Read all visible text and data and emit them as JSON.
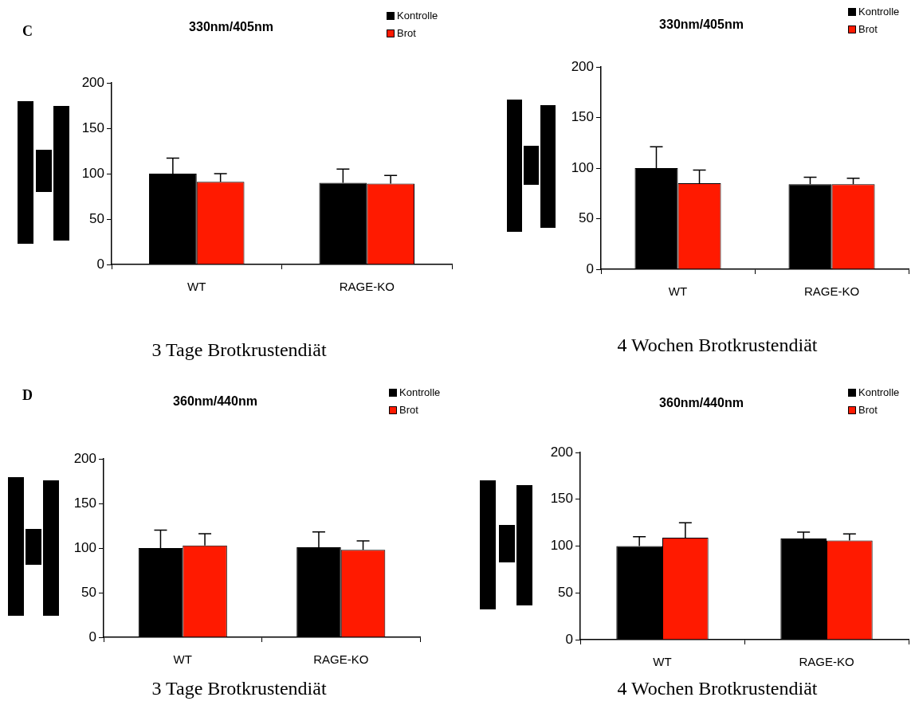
{
  "chart_data": [
    {
      "type": "bar",
      "title": "330nm/405nm",
      "xlabel": "3 Tage Brotkrustendiät",
      "annotations": [
        "C"
      ],
      "categories": [
        "WT",
        "RAGE-KO"
      ],
      "series": [
        {
          "name": "Kontrolle",
          "color": "#000000",
          "values": [
            100,
            90
          ],
          "errors": [
            [
              100,
              117
            ],
            [
              90,
              105
            ]
          ]
        },
        {
          "name": "Brot",
          "color": "#ff1a00",
          "values": [
            91,
            89
          ],
          "errors": [
            [
              91,
              100
            ],
            [
              89,
              98
            ]
          ]
        }
      ],
      "ylim": [
        0,
        200
      ],
      "yticks": [
        0,
        50,
        100,
        150,
        200
      ],
      "grid": false,
      "legend": "top right"
    },
    {
      "type": "bar",
      "title": "330nm/405nm",
      "xlabel": "4 Wochen Brotkrustendiät",
      "categories": [
        "WT",
        "RAGE-KO"
      ],
      "series": [
        {
          "name": "Kontrolle",
          "color": "#000000",
          "values": [
            100,
            84
          ],
          "errors": [
            [
              100,
              121
            ],
            [
              84,
              91
            ]
          ]
        },
        {
          "name": "Brot",
          "color": "#ff1a00",
          "values": [
            85,
            84
          ],
          "errors": [
            [
              85,
              98
            ],
            [
              84,
              90
            ]
          ]
        }
      ],
      "ylim": [
        0,
        200
      ],
      "yticks": [
        0,
        50,
        100,
        150,
        200
      ],
      "grid": false,
      "legend": "top right"
    },
    {
      "type": "bar",
      "title": "360nm/440nm",
      "xlabel": "3 Tage Brotkrustendiät",
      "annotations": [
        "D"
      ],
      "categories": [
        "WT",
        "RAGE-KO"
      ],
      "series": [
        {
          "name": "Kontrolle",
          "color": "#000000",
          "values": [
            100,
            101
          ],
          "errors": [
            [
              100,
              120
            ],
            [
              101,
              118
            ]
          ]
        },
        {
          "name": "Brot",
          "color": "#ff1a00",
          "values": [
            103,
            98
          ],
          "errors": [
            [
              103,
              116
            ],
            [
              98,
              108
            ]
          ]
        }
      ],
      "ylim": [
        0,
        200
      ],
      "yticks": [
        0,
        50,
        100,
        150,
        200
      ],
      "grid": false,
      "legend": "top right"
    },
    {
      "type": "bar",
      "title": "360nm/440nm",
      "xlabel": "4 Wochen Brotkrustendiät",
      "categories": [
        "WT",
        "RAGE-KO"
      ],
      "series": [
        {
          "name": "Kontrolle",
          "color": "#000000",
          "values": [
            100,
            108
          ],
          "errors": [
            [
              100,
              110
            ],
            [
              108,
              115
            ]
          ]
        },
        {
          "name": "Brot",
          "color": "#ff1a00",
          "values": [
            109,
            106
          ],
          "errors": [
            [
              109,
              125
            ],
            [
              106,
              113
            ]
          ]
        }
      ],
      "ylim": [
        0,
        200
      ],
      "yticks": [
        0,
        50,
        100,
        150,
        200
      ],
      "grid": false,
      "legend": "top right"
    }
  ]
}
